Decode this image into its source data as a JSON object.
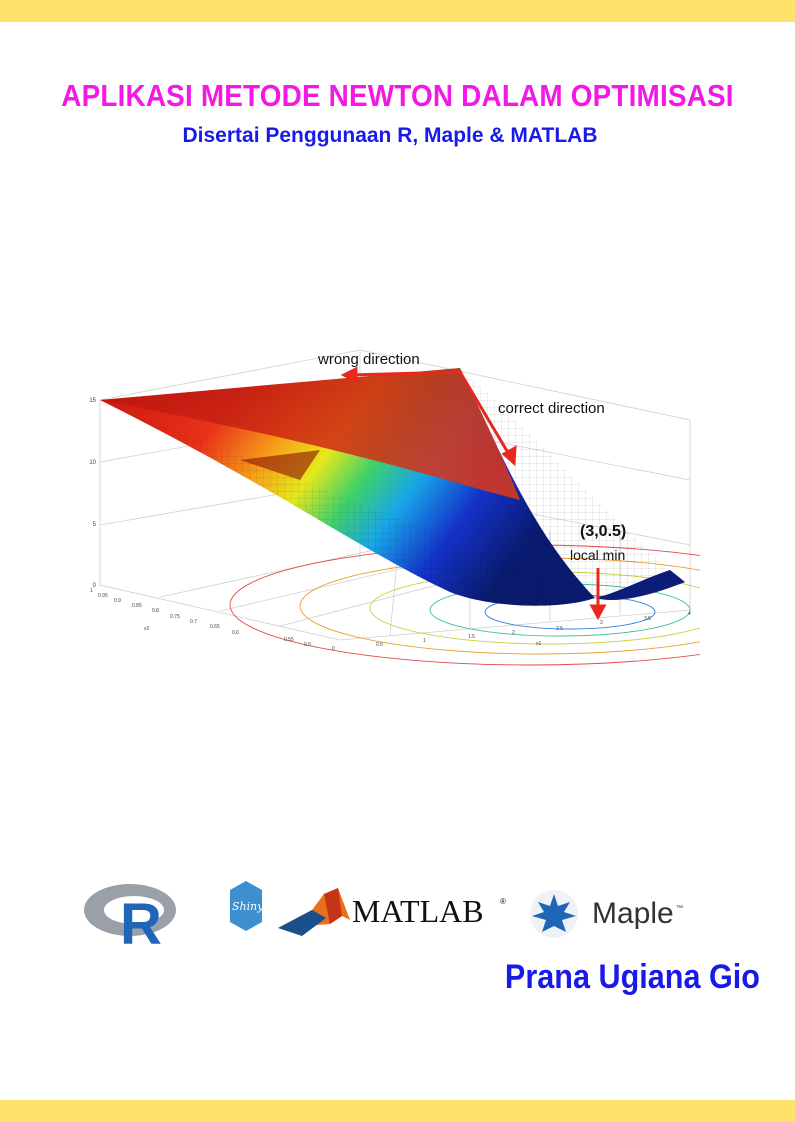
{
  "cover": {
    "title": "APLIKASI METODE NEWTON DALAM OPTIMISASI",
    "subtitle": "Disertai Penggunaan R, Maple & MATLAB",
    "author": "Prana Ugiana Gio"
  },
  "colors": {
    "band": "#fde26b",
    "title": "#f318e6",
    "subtitle": "#1a1ae8",
    "author": "#1a1ae8",
    "arrow": "#e8281e"
  },
  "figure": {
    "annotations": {
      "wrong": "wrong direction",
      "correct": "correct direction",
      "point": "(3,0.5)",
      "localmin": "local min"
    },
    "z_ticks": [
      "0",
      "5",
      "10",
      "15"
    ],
    "x2_ticks": [
      "1",
      "0.95",
      "0.9",
      "0.85",
      "0.8",
      "0.75",
      "0.7",
      "0.65",
      "0.6",
      "0.55",
      "0.5"
    ],
    "x1_ticks": [
      "0",
      "0.5",
      "1",
      "1.5",
      "2",
      "2.5",
      "3",
      "3.5",
      "4"
    ],
    "x2_label": "x2",
    "x1_label": "x1"
  },
  "logos": {
    "r": "R",
    "shiny": "Shiny",
    "matlab": "MATLAB",
    "matlab_mark": "®",
    "maple": "Maple",
    "maple_mark": "™"
  }
}
